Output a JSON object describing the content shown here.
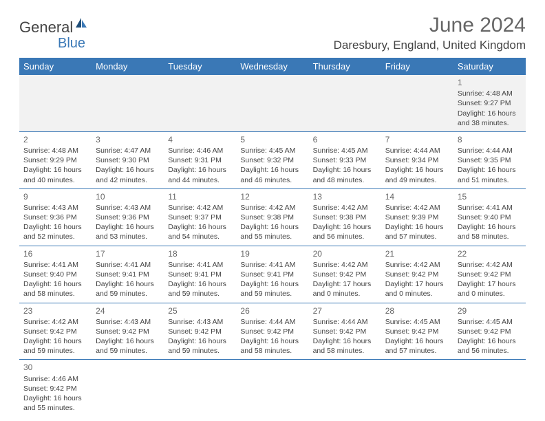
{
  "logo": {
    "text1": "General",
    "text2": "Blue"
  },
  "title": "June 2024",
  "location": "Daresbury, England, United Kingdom",
  "colors": {
    "header_bg": "#3a78b6",
    "text": "#444444",
    "title": "#666666"
  },
  "days": [
    "Sunday",
    "Monday",
    "Tuesday",
    "Wednesday",
    "Thursday",
    "Friday",
    "Saturday"
  ],
  "weeks": [
    [
      null,
      null,
      null,
      null,
      null,
      null,
      {
        "n": "1",
        "sr": "4:48 AM",
        "ss": "9:27 PM",
        "dl": "16 hours and 38 minutes."
      }
    ],
    [
      {
        "n": "2",
        "sr": "4:48 AM",
        "ss": "9:29 PM",
        "dl": "16 hours and 40 minutes."
      },
      {
        "n": "3",
        "sr": "4:47 AM",
        "ss": "9:30 PM",
        "dl": "16 hours and 42 minutes."
      },
      {
        "n": "4",
        "sr": "4:46 AM",
        "ss": "9:31 PM",
        "dl": "16 hours and 44 minutes."
      },
      {
        "n": "5",
        "sr": "4:45 AM",
        "ss": "9:32 PM",
        "dl": "16 hours and 46 minutes."
      },
      {
        "n": "6",
        "sr": "4:45 AM",
        "ss": "9:33 PM",
        "dl": "16 hours and 48 minutes."
      },
      {
        "n": "7",
        "sr": "4:44 AM",
        "ss": "9:34 PM",
        "dl": "16 hours and 49 minutes."
      },
      {
        "n": "8",
        "sr": "4:44 AM",
        "ss": "9:35 PM",
        "dl": "16 hours and 51 minutes."
      }
    ],
    [
      {
        "n": "9",
        "sr": "4:43 AM",
        "ss": "9:36 PM",
        "dl": "16 hours and 52 minutes."
      },
      {
        "n": "10",
        "sr": "4:43 AM",
        "ss": "9:36 PM",
        "dl": "16 hours and 53 minutes."
      },
      {
        "n": "11",
        "sr": "4:42 AM",
        "ss": "9:37 PM",
        "dl": "16 hours and 54 minutes."
      },
      {
        "n": "12",
        "sr": "4:42 AM",
        "ss": "9:38 PM",
        "dl": "16 hours and 55 minutes."
      },
      {
        "n": "13",
        "sr": "4:42 AM",
        "ss": "9:38 PM",
        "dl": "16 hours and 56 minutes."
      },
      {
        "n": "14",
        "sr": "4:42 AM",
        "ss": "9:39 PM",
        "dl": "16 hours and 57 minutes."
      },
      {
        "n": "15",
        "sr": "4:41 AM",
        "ss": "9:40 PM",
        "dl": "16 hours and 58 minutes."
      }
    ],
    [
      {
        "n": "16",
        "sr": "4:41 AM",
        "ss": "9:40 PM",
        "dl": "16 hours and 58 minutes."
      },
      {
        "n": "17",
        "sr": "4:41 AM",
        "ss": "9:41 PM",
        "dl": "16 hours and 59 minutes."
      },
      {
        "n": "18",
        "sr": "4:41 AM",
        "ss": "9:41 PM",
        "dl": "16 hours and 59 minutes."
      },
      {
        "n": "19",
        "sr": "4:41 AM",
        "ss": "9:41 PM",
        "dl": "16 hours and 59 minutes."
      },
      {
        "n": "20",
        "sr": "4:42 AM",
        "ss": "9:42 PM",
        "dl": "17 hours and 0 minutes."
      },
      {
        "n": "21",
        "sr": "4:42 AM",
        "ss": "9:42 PM",
        "dl": "17 hours and 0 minutes."
      },
      {
        "n": "22",
        "sr": "4:42 AM",
        "ss": "9:42 PM",
        "dl": "17 hours and 0 minutes."
      }
    ],
    [
      {
        "n": "23",
        "sr": "4:42 AM",
        "ss": "9:42 PM",
        "dl": "16 hours and 59 minutes."
      },
      {
        "n": "24",
        "sr": "4:43 AM",
        "ss": "9:42 PM",
        "dl": "16 hours and 59 minutes."
      },
      {
        "n": "25",
        "sr": "4:43 AM",
        "ss": "9:42 PM",
        "dl": "16 hours and 59 minutes."
      },
      {
        "n": "26",
        "sr": "4:44 AM",
        "ss": "9:42 PM",
        "dl": "16 hours and 58 minutes."
      },
      {
        "n": "27",
        "sr": "4:44 AM",
        "ss": "9:42 PM",
        "dl": "16 hours and 58 minutes."
      },
      {
        "n": "28",
        "sr": "4:45 AM",
        "ss": "9:42 PM",
        "dl": "16 hours and 57 minutes."
      },
      {
        "n": "29",
        "sr": "4:45 AM",
        "ss": "9:42 PM",
        "dl": "16 hours and 56 minutes."
      }
    ],
    [
      {
        "n": "30",
        "sr": "4:46 AM",
        "ss": "9:42 PM",
        "dl": "16 hours and 55 minutes."
      },
      null,
      null,
      null,
      null,
      null,
      null
    ]
  ],
  "labels": {
    "sunrise": "Sunrise: ",
    "sunset": "Sunset: ",
    "daylight": "Daylight: "
  }
}
